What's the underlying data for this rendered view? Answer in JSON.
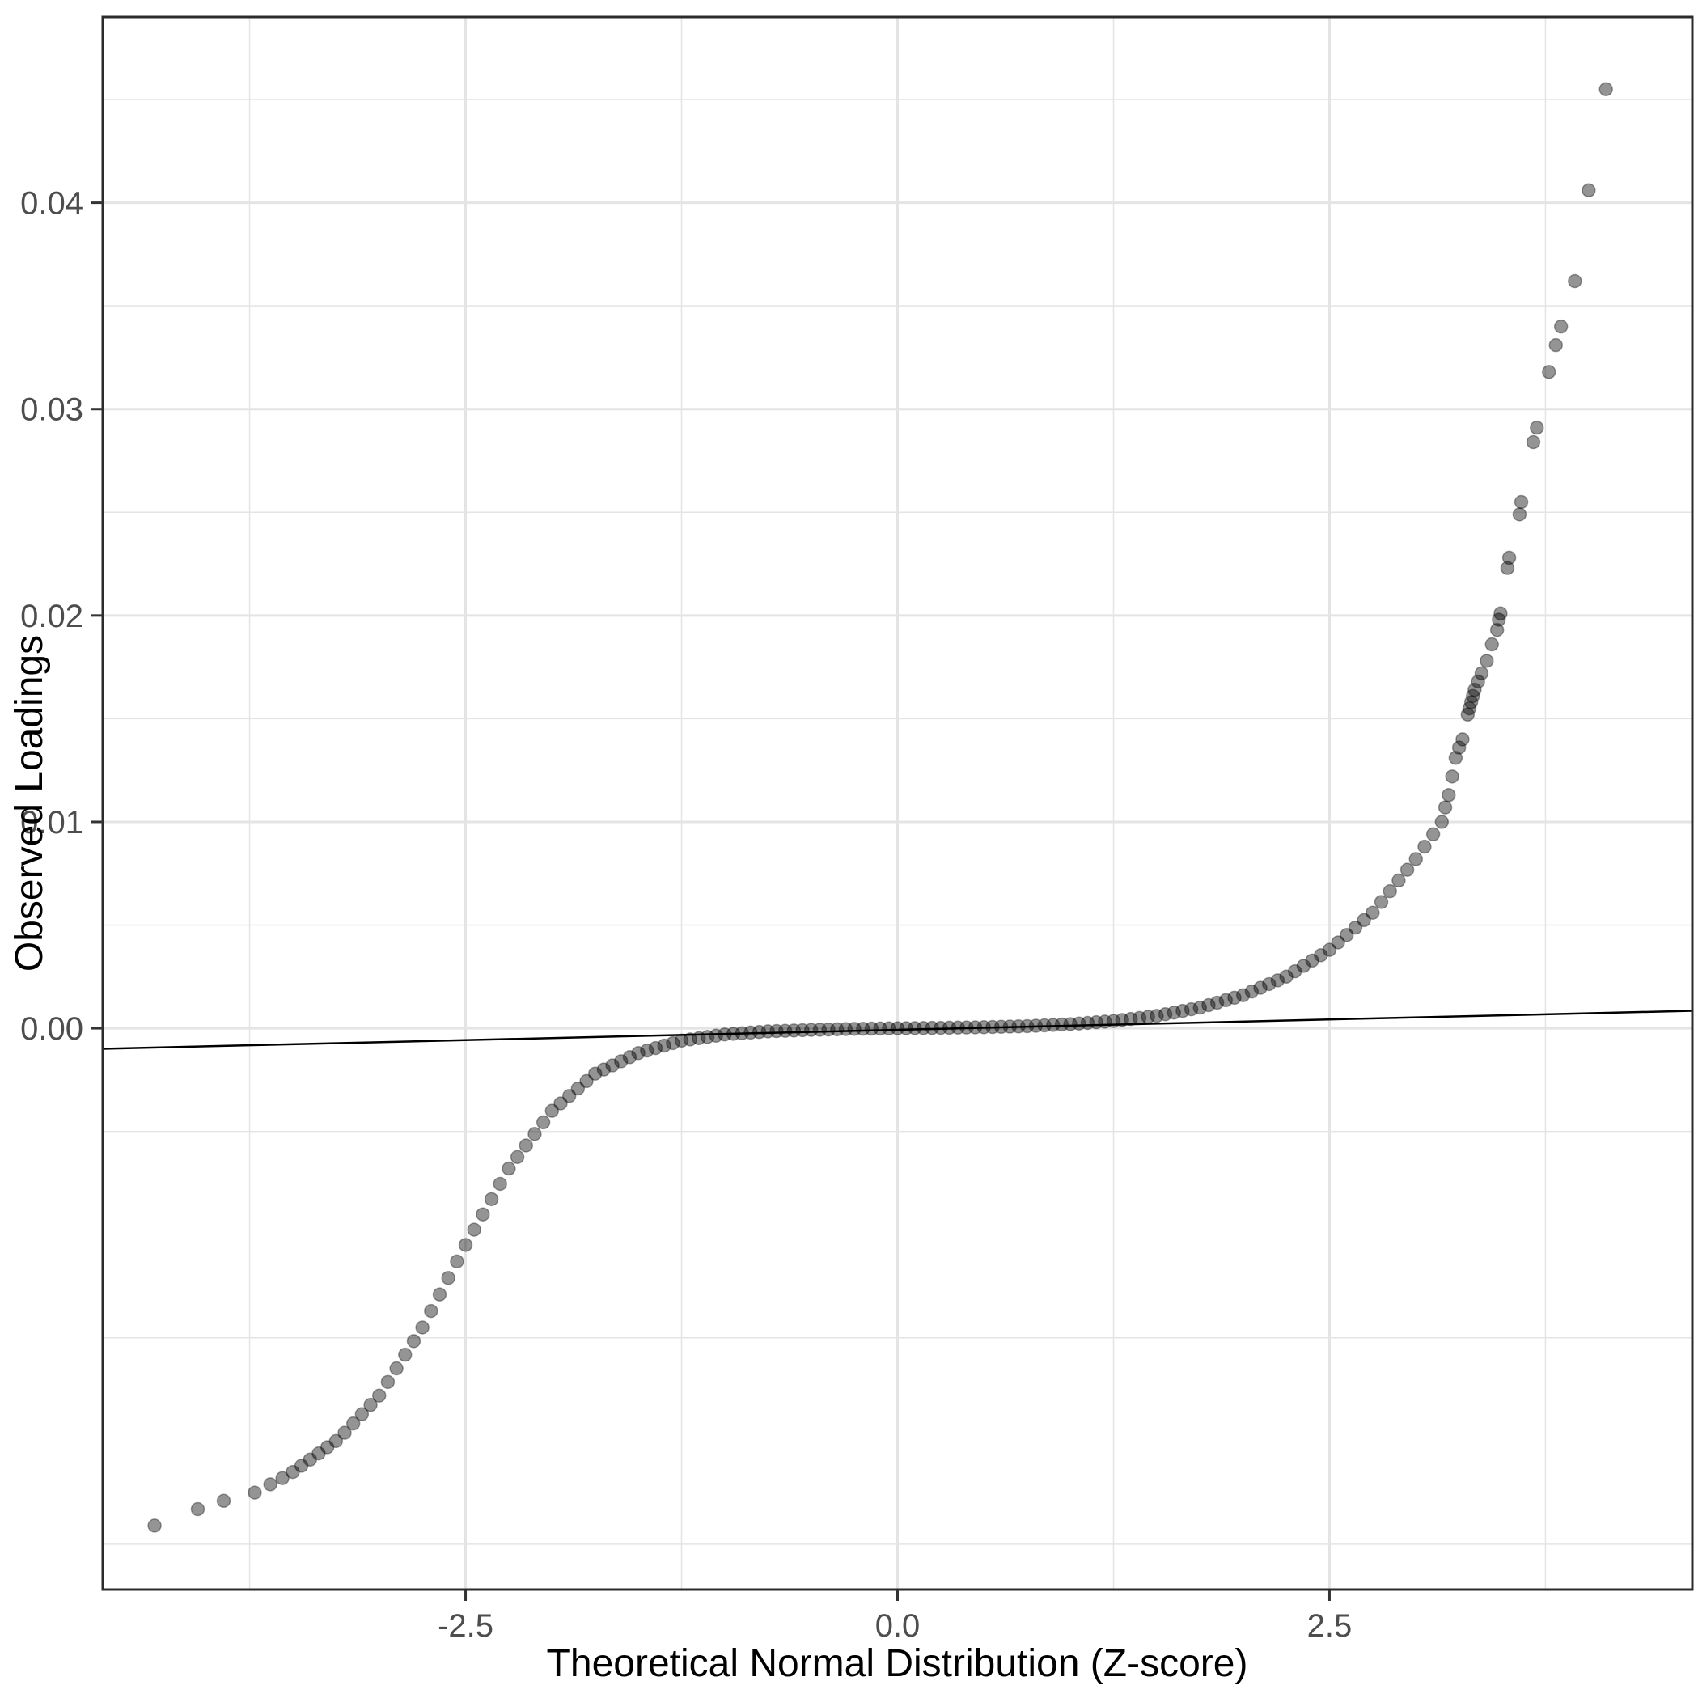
{
  "chart_data": {
    "type": "scatter",
    "title": "",
    "xlabel": "Theoretical Normal Distribution (Z-score)",
    "ylabel": "Observed Loadings",
    "xlim": [
      -4.6,
      4.6
    ],
    "ylim": [
      -0.0272,
      0.049
    ],
    "grid": true,
    "legend": "none",
    "x_tick_values": [
      -2.5,
      0.0,
      2.5
    ],
    "x_tick_labels": [
      "-2.5",
      "0.0",
      "2.5"
    ],
    "y_tick_values": [
      0.0,
      0.01,
      0.02,
      0.03,
      0.04
    ],
    "y_tick_labels": [
      "0.00",
      "0.01",
      "0.02",
      "0.03",
      "0.04"
    ],
    "x_minor_ticks": [
      -3.75,
      -1.25,
      1.25,
      3.75
    ],
    "y_minor_ticks": [
      -0.025,
      -0.015,
      -0.005,
      0.005,
      0.015,
      0.025,
      0.035,
      0.045
    ],
    "reference_line": {
      "slope": 0.0002,
      "intercept": -7.5e-05
    },
    "style": {
      "point_color": "#000000",
      "point_opacity": 0.42,
      "point_stroke_opacity": 0.35,
      "point_radius": 8,
      "grid_color": "#e4e4e4",
      "panel_border_color": "#2b2b2b",
      "reference_line_color": "#000000",
      "tick_label_color": "#4d4d4d",
      "axis_title_color": "#000000",
      "background": "#ffffff"
    },
    "points": [
      [
        -4.3,
        -0.0241
      ],
      [
        -4.05,
        -0.0233
      ],
      [
        -3.9,
        -0.0229
      ],
      [
        -3.72,
        -0.0225
      ],
      [
        -3.63,
        -0.0221
      ],
      [
        -3.56,
        -0.0218
      ],
      [
        -3.5,
        -0.0215
      ],
      [
        -3.45,
        -0.0212
      ],
      [
        -3.4,
        -0.0209
      ],
      [
        -3.35,
        -0.0206
      ],
      [
        -3.3,
        -0.0203
      ],
      [
        -3.25,
        -0.02
      ],
      [
        -3.2,
        -0.0196
      ],
      [
        -3.15,
        -0.01915
      ],
      [
        -3.1,
        -0.0187
      ],
      [
        -3.05,
        -0.01825
      ],
      [
        -3.0,
        -0.0178
      ],
      [
        -2.95,
        -0.01714
      ],
      [
        -2.9,
        -0.01648
      ],
      [
        -2.85,
        -0.01582
      ],
      [
        -2.8,
        -0.01516
      ],
      [
        -2.75,
        -0.0145
      ],
      [
        -2.7,
        -0.0137
      ],
      [
        -2.65,
        -0.0129
      ],
      [
        -2.6,
        -0.0121
      ],
      [
        -2.55,
        -0.0113
      ],
      [
        -2.5,
        -0.0105
      ],
      [
        -2.45,
        -0.00976
      ],
      [
        -2.4,
        -0.00902
      ],
      [
        -2.35,
        -0.00828
      ],
      [
        -2.3,
        -0.00754
      ],
      [
        -2.25,
        -0.0068
      ],
      [
        -2.2,
        -0.00624
      ],
      [
        -2.15,
        -0.00568
      ],
      [
        -2.1,
        -0.00512
      ],
      [
        -2.05,
        -0.00456
      ],
      [
        -2.0,
        -0.004
      ],
      [
        -1.95,
        -0.00364
      ],
      [
        -1.9,
        -0.00328
      ],
      [
        -1.85,
        -0.00292
      ],
      [
        -1.8,
        -0.00256
      ],
      [
        -1.75,
        -0.0022
      ],
      [
        -1.7,
        -0.002
      ],
      [
        -1.65,
        -0.0018
      ],
      [
        -1.6,
        -0.0016
      ],
      [
        -1.55,
        -0.0014
      ],
      [
        -1.5,
        -0.0012
      ],
      [
        -1.45,
        -0.00108
      ],
      [
        -1.4,
        -0.00096
      ],
      [
        -1.35,
        -0.00084
      ],
      [
        -1.3,
        -0.00072
      ],
      [
        -1.25,
        -0.0006
      ],
      [
        -1.2,
        -0.00054
      ],
      [
        -1.15,
        -0.00048
      ],
      [
        -1.1,
        -0.00042
      ],
      [
        -1.05,
        -0.00036
      ],
      [
        -1.0,
        -0.0003
      ],
      [
        -0.95,
        -0.00027
      ],
      [
        -0.9,
        -0.00024
      ],
      [
        -0.85,
        -0.00021
      ],
      [
        -0.8,
        -0.00018
      ],
      [
        -0.75,
        -0.00015
      ],
      [
        -0.7,
        -0.000136
      ],
      [
        -0.65,
        -0.000122
      ],
      [
        -0.6,
        -0.000108
      ],
      [
        -0.55,
        -9.4e-05
      ],
      [
        -0.5,
        -8e-05
      ],
      [
        -0.45,
        -7e-05
      ],
      [
        -0.4,
        -6e-05
      ],
      [
        -0.35,
        -5e-05
      ],
      [
        -0.3,
        -4e-05
      ],
      [
        -0.25,
        -3e-05
      ],
      [
        -0.2,
        -2.4e-05
      ],
      [
        -0.15,
        -1.8e-05
      ],
      [
        -0.1,
        -1.2e-05
      ],
      [
        -0.05,
        -6e-06
      ],
      [
        0.0,
        0.0
      ],
      [
        0.05,
        4e-06
      ],
      [
        0.1,
        8e-06
      ],
      [
        0.15,
        1.2e-05
      ],
      [
        0.2,
        1.6e-05
      ],
      [
        0.25,
        2e-05
      ],
      [
        0.3,
        2.6e-05
      ],
      [
        0.35,
        3.2e-05
      ],
      [
        0.4,
        3.8e-05
      ],
      [
        0.45,
        4.4e-05
      ],
      [
        0.5,
        5e-05
      ],
      [
        0.55,
        6e-05
      ],
      [
        0.6,
        7e-05
      ],
      [
        0.65,
        8e-05
      ],
      [
        0.7,
        9e-05
      ],
      [
        0.75,
        0.0001
      ],
      [
        0.8,
        0.00012
      ],
      [
        0.85,
        0.00014
      ],
      [
        0.9,
        0.00016
      ],
      [
        0.95,
        0.00018
      ],
      [
        1.0,
        0.0002
      ],
      [
        1.05,
        0.00023
      ],
      [
        1.1,
        0.00026
      ],
      [
        1.15,
        0.00029
      ],
      [
        1.2,
        0.00032
      ],
      [
        1.25,
        0.00035
      ],
      [
        1.3,
        0.0004
      ],
      [
        1.35,
        0.00045
      ],
      [
        1.4,
        0.0005
      ],
      [
        1.45,
        0.00055
      ],
      [
        1.5,
        0.0006
      ],
      [
        1.55,
        0.00068
      ],
      [
        1.6,
        0.00076
      ],
      [
        1.65,
        0.00084
      ],
      [
        1.7,
        0.00092
      ],
      [
        1.75,
        0.001
      ],
      [
        1.8,
        0.00112
      ],
      [
        1.85,
        0.00124
      ],
      [
        1.9,
        0.00136
      ],
      [
        1.95,
        0.00148
      ],
      [
        2.0,
        0.0016
      ],
      [
        2.05,
        0.00178
      ],
      [
        2.1,
        0.00196
      ],
      [
        2.15,
        0.00214
      ],
      [
        2.2,
        0.00232
      ],
      [
        2.25,
        0.0025
      ],
      [
        2.3,
        0.00276
      ],
      [
        2.35,
        0.00302
      ],
      [
        2.4,
        0.00328
      ],
      [
        2.45,
        0.00354
      ],
      [
        2.5,
        0.0038
      ],
      [
        2.55,
        0.00416
      ],
      [
        2.6,
        0.00452
      ],
      [
        2.65,
        0.00488
      ],
      [
        2.7,
        0.00524
      ],
      [
        2.75,
        0.0056
      ],
      [
        2.8,
        0.00612
      ],
      [
        2.85,
        0.00664
      ],
      [
        2.9,
        0.00716
      ],
      [
        2.95,
        0.00768
      ],
      [
        3.0,
        0.0082
      ],
      [
        3.05,
        0.0088
      ],
      [
        3.1,
        0.0094
      ],
      [
        3.15,
        0.01
      ],
      [
        3.17,
        0.0107
      ],
      [
        3.19,
        0.0113
      ],
      [
        3.21,
        0.0122
      ],
      [
        3.23,
        0.0131
      ],
      [
        3.25,
        0.0136
      ],
      [
        3.27,
        0.014
      ],
      [
        3.3,
        0.0152
      ],
      [
        3.31,
        0.0155
      ],
      [
        3.32,
        0.0158
      ],
      [
        3.33,
        0.0161
      ],
      [
        3.34,
        0.0164
      ],
      [
        3.36,
        0.0168
      ],
      [
        3.38,
        0.0172
      ],
      [
        3.41,
        0.0178
      ],
      [
        3.44,
        0.0186
      ],
      [
        3.47,
        0.0193
      ],
      [
        3.48,
        0.0198
      ],
      [
        3.49,
        0.0201
      ],
      [
        3.53,
        0.0223
      ],
      [
        3.54,
        0.0228
      ],
      [
        3.6,
        0.0249
      ],
      [
        3.61,
        0.0255
      ],
      [
        3.68,
        0.0284
      ],
      [
        3.7,
        0.0291
      ],
      [
        3.77,
        0.0318
      ],
      [
        3.81,
        0.0331
      ],
      [
        3.84,
        0.034
      ],
      [
        3.92,
        0.0362
      ],
      [
        4.0,
        0.0406
      ],
      [
        4.1,
        0.0455
      ]
    ]
  }
}
